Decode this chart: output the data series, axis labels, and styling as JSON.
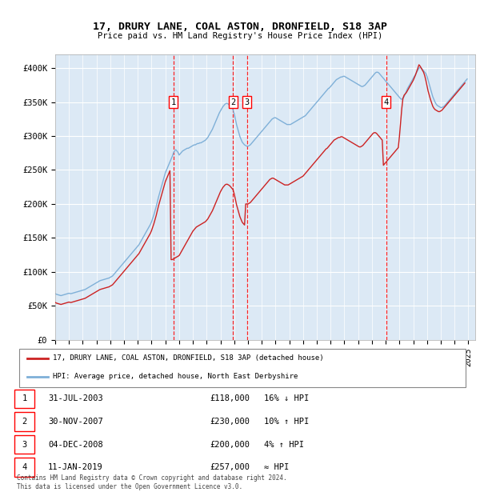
{
  "title": "17, DRURY LANE, COAL ASTON, DRONFIELD, S18 3AP",
  "subtitle": "Price paid vs. HM Land Registry's House Price Index (HPI)",
  "ylabel_ticks": [
    "£0",
    "£50K",
    "£100K",
    "£150K",
    "£200K",
    "£250K",
    "£300K",
    "£350K",
    "£400K"
  ],
  "ytick_vals": [
    0,
    50000,
    100000,
    150000,
    200000,
    250000,
    300000,
    350000,
    400000
  ],
  "ylim": [
    0,
    420000
  ],
  "xlim_start": 1995.0,
  "xlim_end": 2025.5,
  "bg_color": "#dce9f5",
  "sale_dates": [
    2003.58,
    2007.92,
    2008.92,
    2019.03
  ],
  "sale_prices": [
    118000,
    230000,
    200000,
    257000
  ],
  "sale_labels": [
    "1",
    "2",
    "3",
    "4"
  ],
  "legend_line1": "17, DRURY LANE, COAL ASTON, DRONFIELD, S18 3AP (detached house)",
  "legend_line2": "HPI: Average price, detached house, North East Derbyshire",
  "table_data": [
    [
      "1",
      "31-JUL-2003",
      "£118,000",
      "16% ↓ HPI"
    ],
    [
      "2",
      "30-NOV-2007",
      "£230,000",
      "10% ↑ HPI"
    ],
    [
      "3",
      "04-DEC-2008",
      "£200,000",
      "4% ↑ HPI"
    ],
    [
      "4",
      "11-JAN-2019",
      "£257,000",
      "≈ HPI"
    ]
  ],
  "footer": "Contains HM Land Registry data © Crown copyright and database right 2024.\nThis data is licensed under the Open Government Licence v3.0.",
  "hpi_data_y": [
    68000,
    67000,
    66500,
    66000,
    65500,
    65000,
    65500,
    66000,
    66500,
    67000,
    67500,
    68000,
    68500,
    68000,
    68000,
    68500,
    69000,
    69500,
    70000,
    70500,
    71000,
    71500,
    72000,
    72500,
    73000,
    73500,
    74000,
    75000,
    76000,
    77000,
    78000,
    79000,
    80000,
    81000,
    82000,
    83000,
    84000,
    85000,
    86000,
    87000,
    87500,
    88000,
    88500,
    89000,
    89500,
    90000,
    90500,
    91000,
    92000,
    93000,
    94000,
    96000,
    98000,
    100000,
    102000,
    104000,
    106000,
    108000,
    110000,
    112000,
    114000,
    116000,
    118000,
    120000,
    122000,
    124000,
    126000,
    128000,
    130000,
    132000,
    134000,
    136000,
    138000,
    140000,
    143000,
    146000,
    149000,
    152000,
    155000,
    158000,
    161000,
    164000,
    167000,
    170000,
    174000,
    179000,
    184000,
    190000,
    196000,
    203000,
    210000,
    216000,
    222000,
    228000,
    234000,
    240000,
    246000,
    250000,
    254000,
    258000,
    262000,
    266000,
    270000,
    275000,
    278000,
    280000,
    278000,
    276000,
    272000,
    274000,
    276000,
    278000,
    279000,
    280000,
    281000,
    282000,
    282000,
    283000,
    284000,
    285000,
    286000,
    287000,
    287000,
    288000,
    289000,
    289000,
    290000,
    290000,
    291000,
    292000,
    293000,
    294000,
    296000,
    298000,
    301000,
    304000,
    307000,
    310000,
    314000,
    318000,
    322000,
    326000,
    330000,
    334000,
    337000,
    340000,
    343000,
    345000,
    347000,
    348000,
    348000,
    347000,
    345000,
    343000,
    341000,
    339000,
    333000,
    325000,
    317000,
    311000,
    305000,
    299000,
    295000,
    291000,
    289000,
    287000,
    286000,
    285000,
    285000,
    286000,
    287000,
    289000,
    291000,
    293000,
    295000,
    297000,
    299000,
    301000,
    303000,
    305000,
    307000,
    309000,
    311000,
    313000,
    315000,
    317000,
    319000,
    321000,
    323000,
    325000,
    326000,
    327000,
    327000,
    326000,
    325000,
    324000,
    323000,
    322000,
    321000,
    320000,
    319000,
    318000,
    317000,
    317000,
    317000,
    317000,
    318000,
    319000,
    320000,
    321000,
    322000,
    323000,
    324000,
    325000,
    326000,
    327000,
    328000,
    329000,
    330000,
    332000,
    334000,
    336000,
    338000,
    340000,
    342000,
    344000,
    346000,
    348000,
    350000,
    352000,
    354000,
    356000,
    358000,
    360000,
    362000,
    364000,
    366000,
    368000,
    370000,
    371000,
    373000,
    375000,
    377000,
    379000,
    381000,
    383000,
    384000,
    385000,
    386000,
    387000,
    387000,
    388000,
    388000,
    387000,
    386000,
    385000,
    384000,
    383000,
    382000,
    381000,
    380000,
    379000,
    378000,
    377000,
    376000,
    375000,
    374000,
    373000,
    373000,
    374000,
    375000,
    377000,
    379000,
    381000,
    383000,
    385000,
    387000,
    389000,
    391000,
    393000,
    394000,
    394000,
    393000,
    391000,
    389000,
    387000,
    385000,
    383000,
    381000,
    379000,
    377000,
    375000,
    373000,
    371000,
    369000,
    367000,
    365000,
    363000,
    361000,
    359000,
    357000,
    355000,
    354000,
    356000,
    358000,
    362000,
    366000,
    370000,
    373000,
    376000,
    379000,
    382000,
    385000,
    388000,
    391000,
    394000,
    397000,
    400000,
    401000,
    400000,
    398000,
    396000,
    394000,
    392000,
    388000,
    382000,
    376000,
    370000,
    364000,
    358000,
    354000,
    350000,
    347000,
    345000,
    344000,
    343000,
    342000,
    342000,
    343000,
    344000,
    346000,
    348000,
    350000,
    352000,
    354000,
    356000,
    358000,
    360000,
    362000,
    364000,
    366000,
    368000,
    370000,
    372000,
    374000,
    376000,
    378000,
    380000,
    382000,
    384000
  ],
  "price_data_y": [
    55000,
    54000,
    53500,
    53000,
    52500,
    52000,
    52500,
    53000,
    53500,
    54000,
    54500,
    55000,
    55500,
    55000,
    55000,
    55500,
    56000,
    56500,
    57000,
    57500,
    58000,
    58500,
    59000,
    59500,
    60000,
    60500,
    61000,
    62000,
    63000,
    64000,
    65000,
    66000,
    67000,
    68000,
    69000,
    70000,
    71000,
    72000,
    73000,
    74000,
    74500,
    75000,
    75500,
    76000,
    76500,
    77000,
    77500,
    78000,
    79000,
    80000,
    81000,
    83000,
    85000,
    87000,
    89000,
    91000,
    93000,
    95000,
    97000,
    99000,
    101000,
    103000,
    105000,
    107000,
    109000,
    111000,
    113000,
    115000,
    117000,
    119000,
    121000,
    123000,
    125000,
    127000,
    130000,
    133000,
    136000,
    139000,
    142000,
    145000,
    148000,
    151000,
    154000,
    157000,
    161000,
    166000,
    171000,
    177000,
    183000,
    190000,
    197000,
    203000,
    209000,
    215000,
    221000,
    227000,
    233000,
    237000,
    241000,
    245000,
    249000,
    118000,
    118000,
    119000,
    120000,
    121000,
    122000,
    123000,
    124000,
    127000,
    130000,
    133000,
    136000,
    139000,
    142000,
    145000,
    148000,
    151000,
    154000,
    157000,
    160000,
    162000,
    164000,
    166000,
    167000,
    168000,
    169000,
    170000,
    171000,
    172000,
    173000,
    174000,
    176000,
    178000,
    181000,
    184000,
    187000,
    190000,
    194000,
    198000,
    202000,
    206000,
    210000,
    214000,
    218000,
    221000,
    224000,
    226000,
    228000,
    229000,
    229000,
    228000,
    227000,
    225000,
    223000,
    221000,
    215000,
    207000,
    199000,
    193000,
    187000,
    181000,
    177000,
    173000,
    171000,
    169000,
    200000,
    200000,
    200000,
    201000,
    202000,
    204000,
    206000,
    208000,
    210000,
    212000,
    214000,
    216000,
    218000,
    220000,
    222000,
    224000,
    226000,
    228000,
    230000,
    232000,
    234000,
    236000,
    237000,
    238000,
    238000,
    237000,
    236000,
    235000,
    234000,
    233000,
    232000,
    231000,
    230000,
    229000,
    228000,
    228000,
    228000,
    228000,
    229000,
    230000,
    231000,
    232000,
    233000,
    234000,
    235000,
    236000,
    237000,
    238000,
    239000,
    240000,
    241000,
    243000,
    245000,
    247000,
    249000,
    251000,
    253000,
    255000,
    257000,
    259000,
    261000,
    263000,
    265000,
    267000,
    269000,
    271000,
    273000,
    275000,
    277000,
    279000,
    281000,
    282000,
    284000,
    286000,
    288000,
    290000,
    292000,
    294000,
    295000,
    296000,
    297000,
    298000,
    298000,
    299000,
    299000,
    298000,
    297000,
    296000,
    295000,
    294000,
    293000,
    292000,
    291000,
    290000,
    289000,
    288000,
    287000,
    286000,
    285000,
    284000,
    284000,
    285000,
    286000,
    288000,
    290000,
    292000,
    294000,
    296000,
    298000,
    300000,
    302000,
    304000,
    305000,
    305000,
    304000,
    302000,
    300000,
    298000,
    296000,
    294000,
    257000,
    259000,
    261000,
    263000,
    265000,
    267000,
    269000,
    271000,
    273000,
    275000,
    277000,
    279000,
    281000,
    283000,
    300000,
    320000,
    340000,
    355000,
    360000,
    362000,
    364000,
    367000,
    370000,
    373000,
    376000,
    379000,
    382000,
    386000,
    390000,
    395000,
    400000,
    405000,
    403000,
    400000,
    397000,
    394000,
    389000,
    382000,
    374000,
    366000,
    360000,
    354000,
    349000,
    344000,
    341000,
    339000,
    338000,
    337000,
    336000,
    336000,
    337000,
    338000,
    340000,
    342000,
    344000,
    346000,
    348000,
    350000,
    352000,
    354000,
    356000,
    358000,
    360000,
    362000,
    364000,
    366000,
    368000,
    370000,
    372000,
    374000,
    376000,
    378000
  ]
}
